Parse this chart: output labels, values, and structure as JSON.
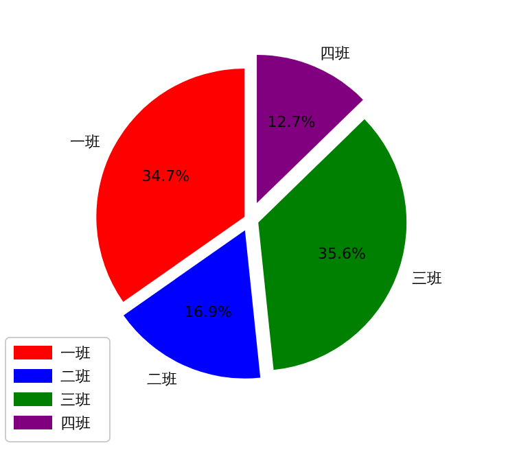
{
  "chart_data": {
    "type": "pie",
    "categories": [
      "一班",
      "二班",
      "三班",
      "四班"
    ],
    "values": [
      34.7,
      16.9,
      35.6,
      12.7
    ],
    "colors": [
      "#ff0000",
      "#0000ff",
      "#008000",
      "#800080"
    ],
    "value_labels": [
      "34.7%",
      "16.9%",
      "35.6%",
      "12.7%"
    ],
    "legend": "left"
  }
}
